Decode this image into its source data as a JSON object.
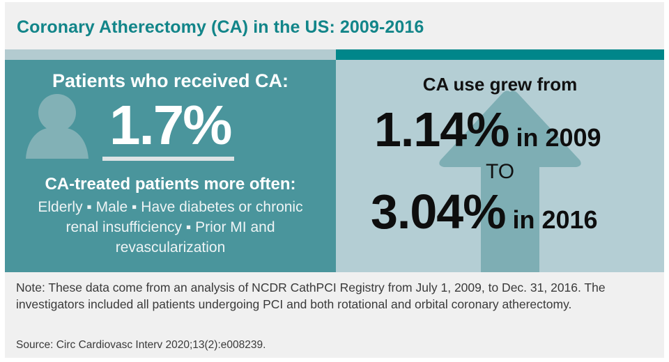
{
  "title": "Coronary Atherectomy (CA) in the US: 2009-2016",
  "colors": {
    "title": "#128589",
    "left_panel": "#4a959c",
    "right_panel": "#b4ced4",
    "accent_band": "#00868a",
    "light_band": "#b3cbd0",
    "arrow": "#7eaeb4",
    "person_icon": "#82b1b6"
  },
  "left_panel": {
    "icon": "person-icon",
    "heading": "Patients who received CA:",
    "big_value": "1.7%",
    "subheading": "CA-treated patients more often:",
    "characteristics": "Elderly ▪ Male ▪ Have diabetes or chronic renal insufficiency ▪ Prior MI and revascularization"
  },
  "right_panel": {
    "icon": "up-arrow-icon",
    "heading": "CA use grew from",
    "start_value": "1.14%",
    "start_year": "in 2009",
    "connector": "TO",
    "end_value": "3.04%",
    "end_year": "in 2016"
  },
  "footer": {
    "note": "Note: These data come from an analysis of NCDR CathPCI Registry from July 1, 2009, to Dec. 31, 2016. The investigators included all patients undergoing PCI and both rotational and orbital coronary atherectomy.",
    "source": "Source: Circ Cardiovasc Interv 2020;13(2):e008239."
  }
}
